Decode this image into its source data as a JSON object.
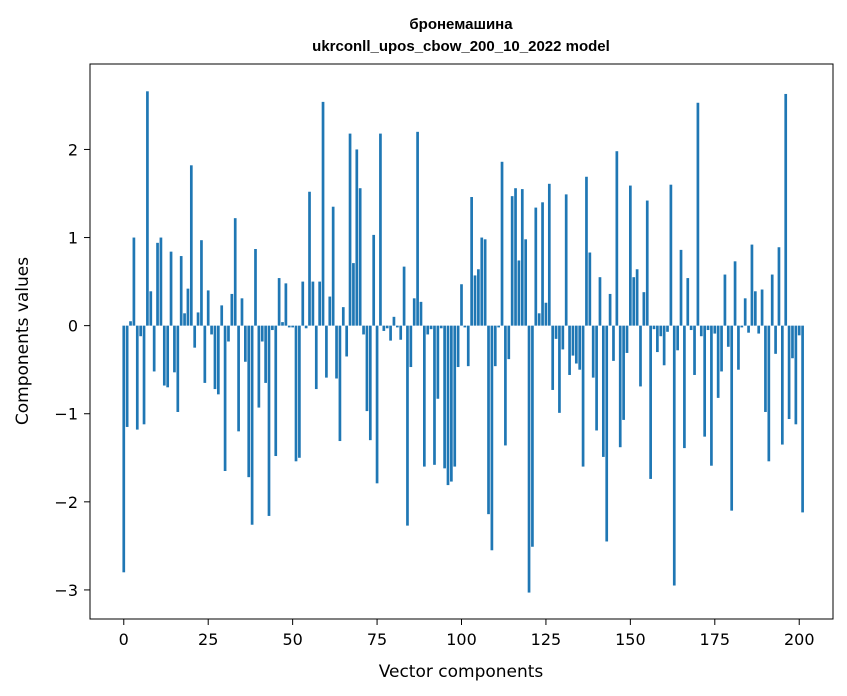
{
  "chart_data": {
    "type": "bar",
    "title_line1": "бронемашина",
    "title_line2": "ukrconll_upos_cbow_200_10_2022 model",
    "xlabel": "Vector components",
    "ylabel": "Components values",
    "bar_color": "#1f77b4",
    "xlim": [
      -10,
      210
    ],
    "ylim": [
      -3.33,
      2.97
    ],
    "xticks": [
      0,
      25,
      50,
      75,
      100,
      125,
      150,
      175,
      200
    ],
    "xtick_labels": [
      "0",
      "25",
      "50",
      "75",
      "100",
      "125",
      "150",
      "175",
      "200"
    ],
    "yticks": [
      -3,
      -2,
      -1,
      0,
      1,
      2
    ],
    "ytick_labels": [
      "−3",
      "−2",
      "−1",
      "0",
      "1",
      "2"
    ],
    "grid": false,
    "values": [
      -2.8,
      -1.15,
      0.05,
      1.0,
      -1.18,
      -0.12,
      -1.12,
      2.66,
      0.39,
      -0.52,
      0.94,
      1.0,
      -0.68,
      -0.7,
      0.84,
      -0.53,
      -0.98,
      0.79,
      0.14,
      0.42,
      1.82,
      -0.25,
      0.15,
      0.97,
      -0.65,
      0.4,
      -0.1,
      -0.72,
      -0.78,
      0.23,
      -1.65,
      -0.18,
      0.36,
      1.22,
      -1.2,
      0.31,
      -0.41,
      -1.72,
      -2.26,
      0.87,
      -0.93,
      -0.18,
      -0.65,
      -2.16,
      -0.05,
      -1.48,
      0.54,
      0.04,
      0.48,
      -0.02,
      -0.02,
      -1.54,
      -1.5,
      0.5,
      -0.03,
      1.52,
      0.5,
      -0.72,
      0.5,
      2.54,
      -0.59,
      0.33,
      1.35,
      -0.6,
      -1.31,
      0.21,
      -0.35,
      2.18,
      0.71,
      2.0,
      1.56,
      -0.1,
      -0.97,
      -1.3,
      1.03,
      -1.79,
      2.18,
      -0.06,
      -0.03,
      -0.17,
      0.1,
      -0.02,
      -0.16,
      0.67,
      -2.27,
      -0.47,
      0.31,
      2.2,
      0.27,
      -1.6,
      -0.1,
      -0.04,
      -1.58,
      -0.83,
      -0.03,
      -1.62,
      -1.81,
      -1.77,
      -1.6,
      -0.47,
      0.47,
      -0.02,
      -0.46,
      1.46,
      0.57,
      0.64,
      1.0,
      0.98,
      -2.14,
      -2.55,
      -0.46,
      -0.02,
      1.86,
      -1.36,
      -0.38,
      1.47,
      1.56,
      0.74,
      1.55,
      0.98,
      -3.03,
      -2.51,
      1.34,
      0.14,
      1.4,
      0.26,
      1.61,
      -0.73,
      -0.15,
      -0.99,
      -0.27,
      1.49,
      -0.56,
      -0.34,
      -0.43,
      -0.5,
      -1.6,
      1.69,
      0.83,
      -0.59,
      -1.19,
      0.55,
      -1.49,
      -2.45,
      0.36,
      -0.4,
      1.98,
      -1.38,
      -1.07,
      -0.31,
      1.59,
      0.55,
      0.64,
      -0.69,
      0.38,
      1.42,
      -1.74,
      -0.04,
      -0.3,
      -0.12,
      -0.45,
      -0.07,
      1.6,
      -2.95,
      -0.28,
      0.86,
      -1.39,
      0.54,
      -0.05,
      -0.56,
      2.53,
      -0.12,
      -1.26,
      -0.05,
      -1.59,
      -0.09,
      -0.82,
      -0.52,
      0.58,
      -0.24,
      -2.1,
      0.73,
      -0.5,
      -0.02,
      0.31,
      -0.08,
      0.92,
      0.39,
      -0.09,
      0.41,
      -0.98,
      -1.54,
      0.58,
      -0.32,
      0.89,
      -1.35,
      2.63,
      -1.06,
      -0.37,
      -1.12,
      -0.11,
      -2.12
    ]
  }
}
